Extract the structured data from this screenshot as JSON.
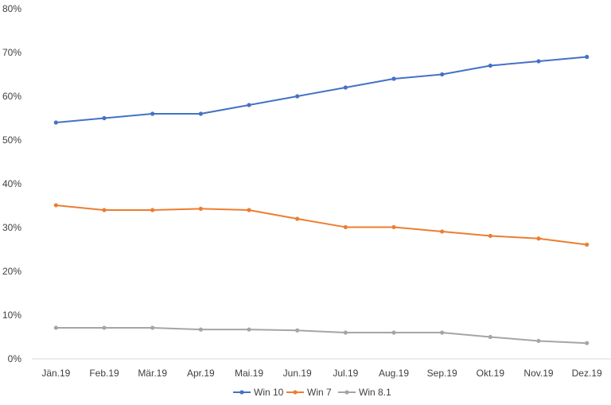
{
  "chart_data": {
    "type": "line",
    "title": "",
    "xlabel": "",
    "ylabel": "",
    "categories": [
      "Jän.19",
      "Feb.19",
      "Mär.19",
      "Apr.19",
      "Mai.19",
      "Jun.19",
      "Jul.19",
      "Aug.19",
      "Sep.19",
      "Okt.19",
      "Nov.19",
      "Dez.19"
    ],
    "y_ticks": [
      "0%",
      "10%",
      "20%",
      "30%",
      "40%",
      "50%",
      "60%",
      "70%",
      "80%"
    ],
    "ylim": [
      0,
      80
    ],
    "y_unit": "%",
    "grid": false,
    "legend_position": "bottom",
    "series": [
      {
        "name": "Win 10",
        "color": "#4472C4",
        "values": [
          54,
          55,
          56,
          56,
          58,
          60,
          62,
          64,
          65,
          67,
          68,
          69
        ]
      },
      {
        "name": "Win 7",
        "color": "#ED7D31",
        "values": [
          35.1,
          34,
          34,
          34.3,
          34,
          32,
          30.1,
          30.1,
          29.1,
          28.1,
          27.5,
          26.1
        ]
      },
      {
        "name": "Win 8.1",
        "color": "#A5A5A5",
        "values": [
          7.1,
          7.1,
          7.1,
          6.7,
          6.7,
          6.5,
          6.0,
          6.0,
          6.0,
          5.0,
          4.1,
          3.6
        ]
      }
    ]
  }
}
